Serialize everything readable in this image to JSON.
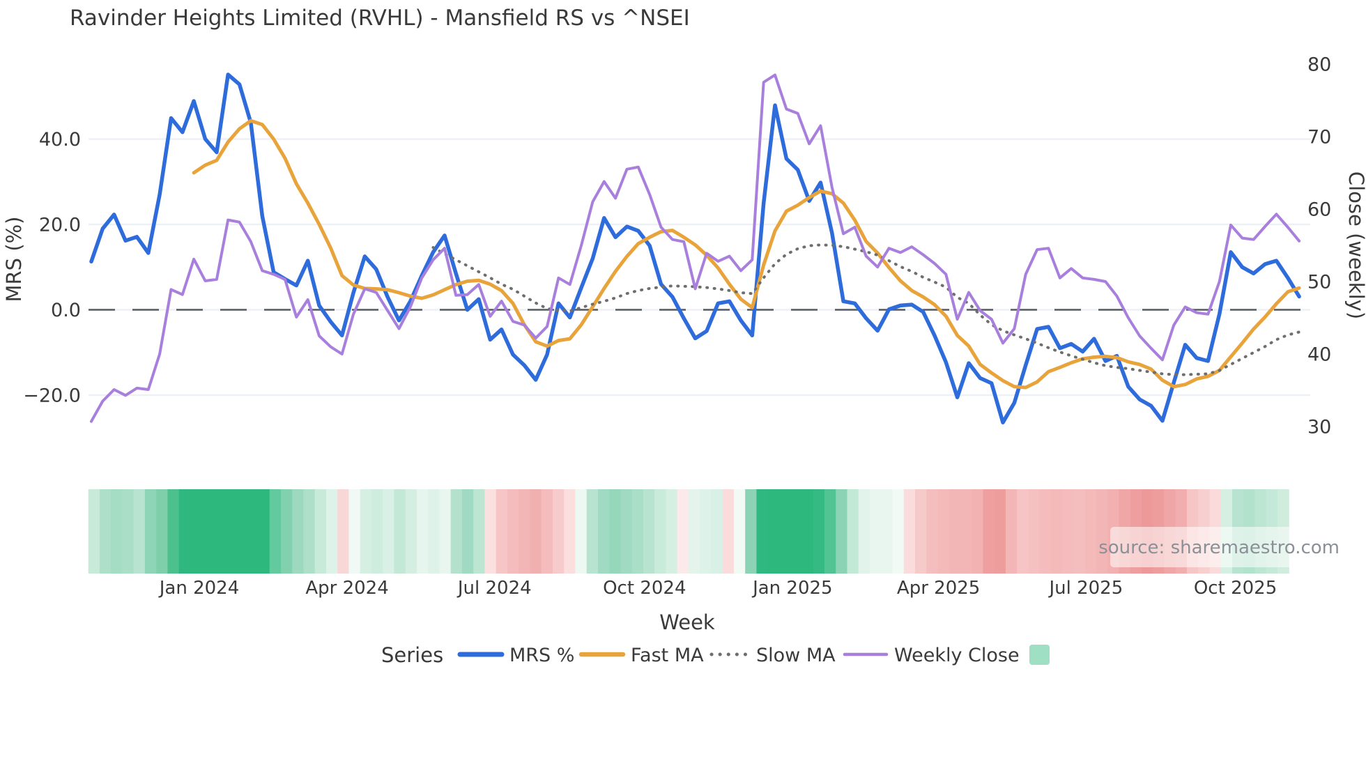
{
  "title": "Ravinder Heights Limited (RVHL) - Mansfield RS vs ^NSEI",
  "source": {
    "text": "source: sharemaestro.com"
  },
  "axes": {
    "left": {
      "label": "MRS (%)",
      "ticks": [
        {
          "v": 40,
          "label": "40.0"
        },
        {
          "v": 20,
          "label": "20.0"
        },
        {
          "v": 0,
          "label": "0.0"
        },
        {
          "v": -20,
          "label": "−20.0"
        }
      ]
    },
    "right": {
      "label": "Close (weekly)",
      "ticks": [
        {
          "v": 80,
          "label": "80"
        },
        {
          "v": 70,
          "label": "70"
        },
        {
          "v": 60,
          "label": "60"
        },
        {
          "v": 50,
          "label": "50"
        },
        {
          "v": 40,
          "label": "40"
        },
        {
          "v": 30,
          "label": "30"
        }
      ]
    },
    "x": {
      "label": "Week",
      "ticks": [
        {
          "week": 9.48,
          "label": "Jan 2024"
        },
        {
          "week": 22.45,
          "label": "Apr 2024"
        },
        {
          "week": 35.4,
          "label": "Jul 2024"
        },
        {
          "week": 48.55,
          "label": "Oct 2024"
        },
        {
          "week": 61.55,
          "label": "Jan 2025"
        },
        {
          "week": 74.35,
          "label": "Apr 2025"
        },
        {
          "week": 87.3,
          "label": "Jul 2025"
        },
        {
          "week": 100.4,
          "label": "Oct 2025"
        }
      ]
    }
  },
  "legend": {
    "title": "Series",
    "items": [
      {
        "label": "MRS %",
        "color": "#2e6cdb",
        "style": "solid"
      },
      {
        "label": "Fast MA",
        "color": "#e9a33b",
        "style": "solid"
      },
      {
        "label": "Slow MA",
        "color": "#6e6e6e",
        "style": "dotted"
      },
      {
        "label": "Weekly Close",
        "color": "#a87fdc",
        "style": "solid"
      }
    ],
    "heat_swatch_color": "#9fdfc3"
  },
  "colors": {
    "zero_line": "#545a64",
    "grid": "#edf0f5",
    "strong_green": "#2db87e",
    "strong_red": "#ed9999"
  },
  "chart_data": {
    "type": "line",
    "title": "Ravinder Heights Limited (RVHL) - Mansfield RS vs ^NSEI",
    "xlabel": "Week",
    "ylabel_left": "MRS (%)",
    "ylabel_right": "Close (weekly)",
    "x_is_weekly_index": true,
    "n_weeks": 107,
    "mrs_ticks": [
      40,
      20,
      0,
      -20
    ],
    "close_ticks": [
      80,
      70,
      60,
      50,
      40,
      30
    ],
    "grid": "horizontal-light, dashed zero line at MRS 0",
    "legend_position": "bottom",
    "series": [
      {
        "name": "MRS %",
        "axis": "mrs",
        "color": "#2e6cdb",
        "width": 5.5,
        "dash": null,
        "values": [
          11.3,
          19,
          22.3,
          16.2,
          17.1,
          13.3,
          27,
          44.9,
          41.6,
          48.9,
          40,
          36.9,
          55.1,
          52.8,
          43.8,
          22,
          8.8,
          7.2,
          5.7,
          11.5,
          1,
          -2.8,
          -6,
          4,
          12.5,
          9.5,
          3,
          -2.5,
          2,
          8,
          13.5,
          17.4,
          8.5,
          0,
          2.5,
          -7,
          -4.6,
          -10.5,
          -13,
          -16.4,
          -10.5,
          1.5,
          -1.8,
          5.2,
          12,
          21.5,
          17,
          19.5,
          18.5,
          15,
          6,
          3,
          -2,
          -6.7,
          -5,
          1.5,
          2,
          -2.5,
          -6,
          25,
          47.9,
          35.4,
          32.8,
          25.5,
          29.8,
          18,
          2,
          1.5,
          -2,
          -4.9,
          0.1,
          1,
          1.2,
          -0.5,
          -6,
          -12.3,
          -20.5,
          -12.5,
          -16,
          -17.2,
          -26.4,
          -21.8,
          -13,
          -4.5,
          -4,
          -9,
          -8,
          -9.8,
          -6.8,
          -12,
          -10.8,
          -18,
          -21,
          -22.5,
          -26,
          -17,
          -8.2,
          -11.3,
          -12,
          -1,
          13.5,
          10,
          8.5,
          10.7,
          11.5,
          7.5,
          3.1
        ]
      },
      {
        "name": "Fast MA",
        "axis": "mrs",
        "color": "#e9a33b",
        "width": 5,
        "dash": null,
        "values": [
          null,
          null,
          null,
          null,
          null,
          null,
          null,
          null,
          null,
          32.1,
          33.9,
          35,
          39.3,
          42.4,
          44.3,
          43.4,
          40,
          35.5,
          29.5,
          25,
          20,
          14.5,
          8,
          5.8,
          5,
          4.9,
          4.7,
          4,
          3.2,
          2.7,
          3.5,
          4.7,
          5.9,
          6.7,
          6.9,
          6,
          4.5,
          1.5,
          -3.5,
          -7.5,
          -8.5,
          -7.2,
          -6.8,
          -3.5,
          0.7,
          5,
          9,
          12.5,
          15.5,
          17,
          18.3,
          18.6,
          17,
          15.2,
          12.8,
          9.8,
          6,
          2.5,
          0.5,
          10.5,
          18.5,
          23.1,
          24.5,
          26.3,
          27.8,
          27.2,
          25,
          21,
          16,
          13.3,
          9.9,
          6.8,
          4.5,
          3,
          1.2,
          -1.5,
          -6,
          -8.5,
          -12.8,
          -14.8,
          -16.6,
          -18,
          -18.2,
          -16.9,
          -14.5,
          -13.5,
          -12.4,
          -11.5,
          -11.1,
          -10.9,
          -11.2,
          -12.2,
          -12.8,
          -13.9,
          -16.5,
          -18,
          -17.5,
          -16.2,
          -15.6,
          -14.2,
          -11,
          -7.8,
          -4.5,
          -1.7,
          1.4,
          4.2,
          5.1
        ]
      },
      {
        "name": "Slow MA",
        "axis": "mrs",
        "color": "#6e6e6e",
        "width": 4,
        "dash": "1 9.5",
        "values": [
          null,
          null,
          null,
          null,
          null,
          null,
          null,
          null,
          null,
          null,
          null,
          null,
          null,
          null,
          null,
          null,
          null,
          null,
          null,
          null,
          null,
          null,
          null,
          null,
          null,
          null,
          null,
          null,
          null,
          null,
          14.6,
          13.1,
          11.7,
          10.3,
          8.9,
          7.5,
          6,
          4.8,
          3.2,
          1.6,
          0.3,
          -0.2,
          -0.3,
          0.5,
          1.3,
          2,
          2.8,
          3.8,
          4.5,
          5,
          5.3,
          5.6,
          5.5,
          5.4,
          5.2,
          4.9,
          4.5,
          4,
          3.8,
          7.5,
          10.8,
          13,
          14.3,
          15,
          15.2,
          15.1,
          14.8,
          14.2,
          13.6,
          12.8,
          11.5,
          10.1,
          9,
          7.6,
          6.5,
          5.3,
          2.9,
          1.5,
          -1.2,
          -3.5,
          -4.9,
          -5.9,
          -6.8,
          -7.8,
          -8.9,
          -9.9,
          -10.8,
          -11.6,
          -12.4,
          -13.1,
          -13.5,
          -13.8,
          -14.2,
          -14.6,
          -15,
          -15.2,
          -15.2,
          -15.1,
          -15,
          -14.2,
          -12.8,
          -11.4,
          -10,
          -8.6,
          -7,
          -5.9,
          -5.2
        ]
      },
      {
        "name": "Weekly Close",
        "axis": "close",
        "color": "#a87fdc",
        "width": 4,
        "dash": null,
        "values": [
          30.7,
          33.5,
          35.1,
          34.3,
          35.3,
          35.1,
          40,
          48.9,
          48.2,
          53.1,
          50.1,
          50.3,
          58.5,
          58.2,
          55.5,
          51.5,
          51,
          50.3,
          45.1,
          47.5,
          42.5,
          41,
          40,
          45.5,
          49,
          48.5,
          46,
          43.5,
          46.5,
          50.5,
          53,
          54.6,
          48.1,
          48.2,
          49.6,
          45.2,
          47.3,
          44.5,
          44,
          42.2,
          43.8,
          50.5,
          49.6,
          55,
          61,
          63.8,
          61.5,
          65.5,
          65.8,
          62,
          57.5,
          55.8,
          55.5,
          49,
          53.9,
          52.8,
          53.5,
          51.5,
          53,
          77.5,
          78.5,
          73.8,
          73.2,
          69,
          71.5,
          63,
          56.6,
          57.5,
          53.5,
          52,
          54.6,
          54,
          54.8,
          53.7,
          52.5,
          51,
          44.8,
          48.5,
          46,
          44.8,
          41.5,
          43.5,
          51,
          54.4,
          54.6,
          50.5,
          51.8,
          50.5,
          50.3,
          50,
          48,
          45,
          42.5,
          40.8,
          39.2,
          44,
          46.5,
          45.7,
          45.5,
          50,
          57.8,
          56,
          55.8,
          57.6,
          59.3,
          57.5,
          55.6
        ]
      }
    ],
    "heatmap": {
      "description": "weekly sentiment strip below chart, green=positive red=negative",
      "colors": [
        "#c8ead9",
        "#aedfc9",
        "#a5dcc4",
        "#aadec7",
        "#b7e3d0",
        "#8ed4b6",
        "#7fcfab",
        "#4cc18e",
        "#2eb87f",
        "#2db87e",
        "#2db87e",
        "#2db87e",
        "#2db87e",
        "#2db87e",
        "#2db87e",
        "#2db87e",
        "#63c99e",
        "#82d1ae",
        "#9cd9bf",
        "#aedfc9",
        "#c8ead9",
        "#ddf2e8",
        "#f8d7d7",
        "#f0f9f5",
        "#d5efe2",
        "#cfedde",
        "#d8f0e5",
        "#c4e8d6",
        "#d4eee1",
        "#e6f5ee",
        "#def2e9",
        "#e8f6ef",
        "#b3e1cc",
        "#a0dac2",
        "#bce5d2",
        "#fbe0e0",
        "#f6c6c6",
        "#f4bcbc",
        "#f3b6b6",
        "#f1b0b0",
        "#f4bcbc",
        "#f7cbcb",
        "#fbdede",
        "#eef8f3",
        "#b7e3d0",
        "#a0dac2",
        "#96d7bb",
        "#a0dac2",
        "#aadec7",
        "#b7e3d0",
        "#c9ebda",
        "#d5efe2",
        "#fceaea",
        "#e4f4ed",
        "#ddf2e9",
        "#d8f0e6",
        "#fadcdc",
        "#f2faf6",
        "#8bd3b4",
        "#2fb980",
        "#2db87e",
        "#2db87e",
        "#2db87e",
        "#2db87e",
        "#35ba83",
        "#52c392",
        "#8bd3b4",
        "#c2e8d6",
        "#e2f3eb",
        "#e8f6ef",
        "#e8f6ef",
        "#f2faf6",
        "#fbdcdc",
        "#f7caca",
        "#f5bebe",
        "#f4baba",
        "#f3b6b6",
        "#f3b6b6",
        "#f2b2b2",
        "#ef9f9f",
        "#ee9d9d",
        "#f3b6b6",
        "#f6c4c4",
        "#f5c0c0",
        "#f4bcbc",
        "#f4baba",
        "#f4bcbc",
        "#f5bebe",
        "#f4baba",
        "#f3b6b6",
        "#f2b0b0",
        "#f0a6a6",
        "#ee9e9e",
        "#ed9999",
        "#ee9d9d",
        "#f0a6a6",
        "#f2aeae",
        "#f6c6c6",
        "#f8cfcf",
        "#fadada",
        "#d5efe3",
        "#b8e3d0",
        "#b2e1cc",
        "#bce5d2",
        "#c5e9d8",
        "#cfecdd"
      ]
    }
  }
}
